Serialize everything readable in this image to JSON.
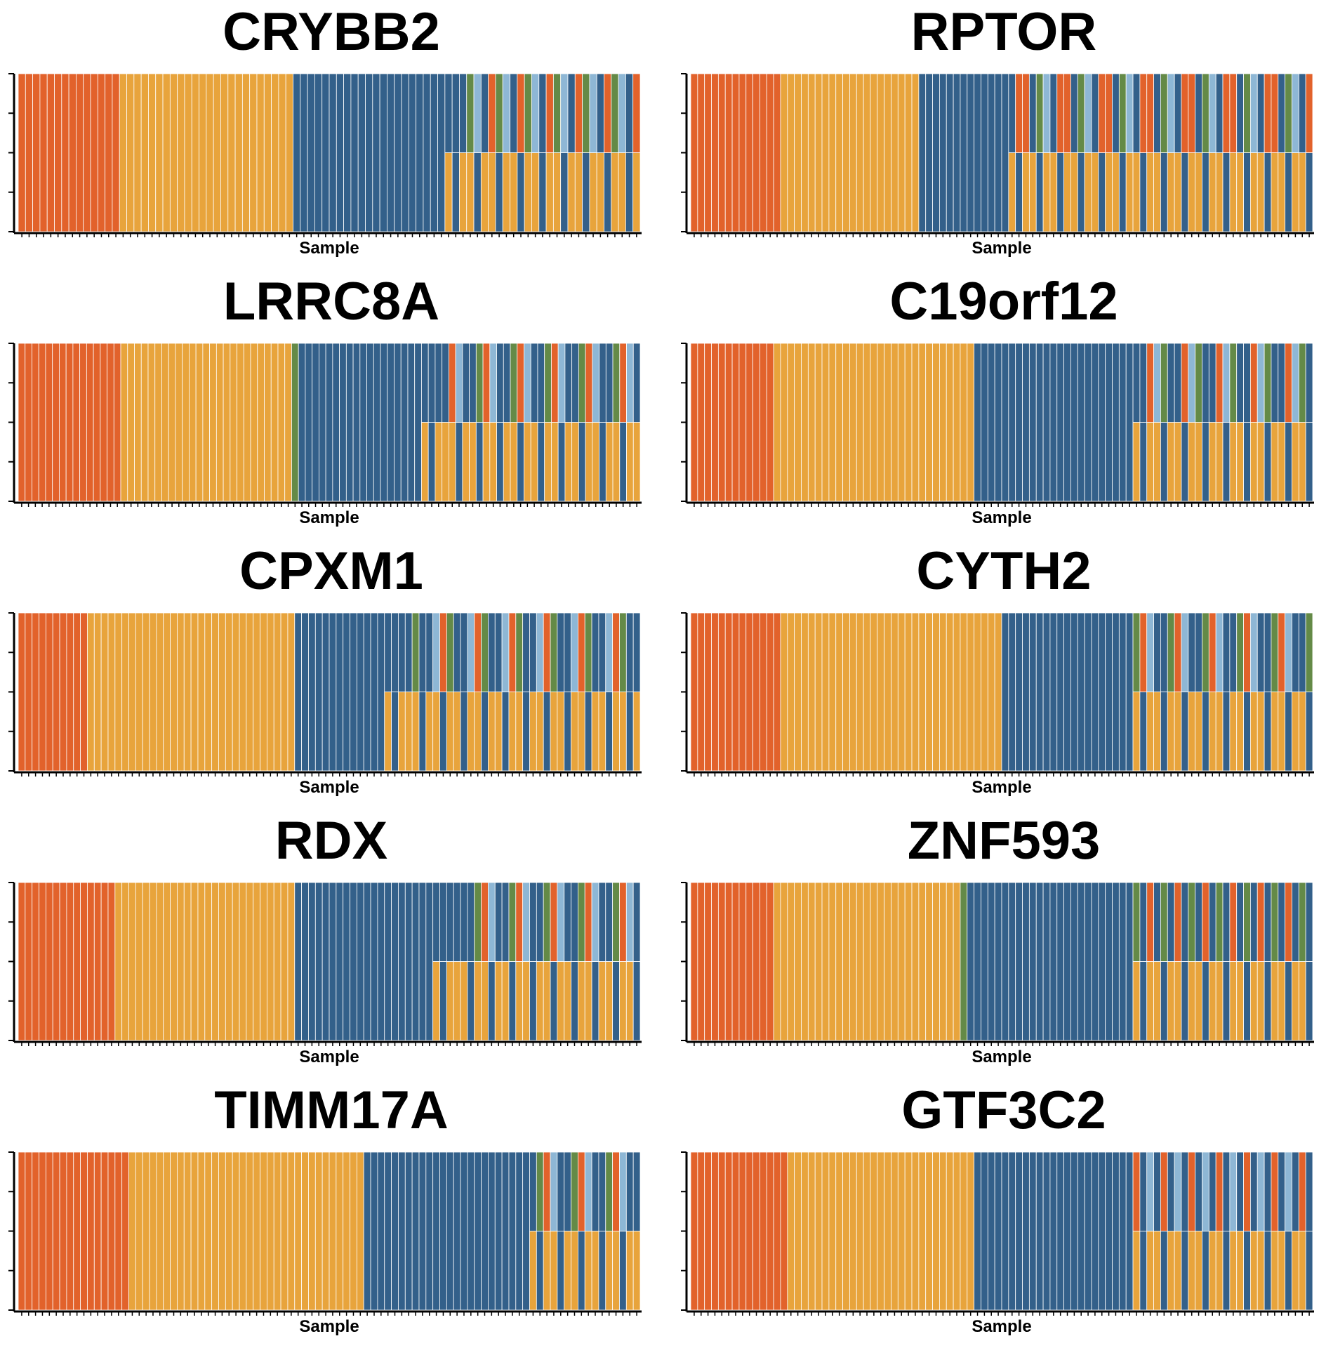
{
  "palette": {
    "orange-red": "#E2622B",
    "gold": "#E8A43C",
    "dark-blue": "#33608A",
    "light-blue": "#8EB7D5",
    "olive-green": "#648A47"
  },
  "chart_data": [
    {
      "type": "stacked-bar",
      "title": "CRYBB2",
      "xlabel": "Sample",
      "ylim": [
        0,
        1
      ],
      "segments": [
        {
          "n": 14,
          "stack": [
            "orange-red"
          ]
        },
        {
          "n": 24,
          "stack": [
            "gold"
          ]
        },
        {
          "n": 21,
          "stack": [
            "dark-blue"
          ]
        },
        {
          "n": 3,
          "stack": [
            "gold",
            "dark-blue"
          ]
        },
        {
          "n": 24,
          "stack": [
            "gold",
            "dark-blue"
          ],
          "mix": [
            "orange-red",
            "dark-blue",
            "light-blue",
            "olive-green"
          ]
        }
      ]
    },
    {
      "type": "stacked-bar",
      "title": "RPTOR",
      "xlabel": "Sample",
      "ylim": [
        0,
        1
      ],
      "segments": [
        {
          "n": 13,
          "stack": [
            "orange-red"
          ]
        },
        {
          "n": 20,
          "stack": [
            "gold"
          ]
        },
        {
          "n": 13,
          "stack": [
            "dark-blue"
          ]
        },
        {
          "n": 44,
          "stack": [
            "gold",
            "dark-blue"
          ],
          "mix": [
            "orange-red",
            "dark-blue",
            "olive-green",
            "light-blue",
            "dark-blue",
            "orange-red"
          ]
        }
      ]
    },
    {
      "type": "stacked-bar",
      "title": "LRRC8A",
      "xlabel": "Sample",
      "ylim": [
        0,
        1
      ],
      "segments": [
        {
          "n": 15,
          "stack": [
            "orange-red"
          ]
        },
        {
          "n": 25,
          "stack": [
            "gold"
          ]
        },
        {
          "n": 1,
          "stack": [
            "olive-green"
          ]
        },
        {
          "n": 18,
          "stack": [
            "dark-blue"
          ]
        },
        {
          "n": 4,
          "stack": [
            "gold",
            "dark-blue"
          ]
        },
        {
          "n": 28,
          "stack": [
            "gold",
            "dark-blue"
          ],
          "mix": [
            "orange-red",
            "dark-blue",
            "light-blue",
            "olive-green",
            "dark-blue"
          ]
        }
      ]
    },
    {
      "type": "stacked-bar",
      "title": "C19orf12",
      "xlabel": "Sample",
      "ylim": [
        0,
        1
      ],
      "segments": [
        {
          "n": 12,
          "stack": [
            "orange-red"
          ]
        },
        {
          "n": 29,
          "stack": [
            "gold"
          ]
        },
        {
          "n": 20,
          "stack": [
            "dark-blue"
          ]
        },
        {
          "n": 3,
          "stack": [
            "dark-blue"
          ]
        },
        {
          "n": 26,
          "stack": [
            "gold",
            "dark-blue"
          ],
          "mix": [
            "orange-red",
            "dark-blue",
            "light-blue",
            "dark-blue",
            "olive-green"
          ]
        }
      ]
    },
    {
      "type": "stacked-bar",
      "title": "CPXM1",
      "xlabel": "Sample",
      "ylim": [
        0,
        1
      ],
      "segments": [
        {
          "n": 10,
          "stack": [
            "orange-red"
          ]
        },
        {
          "n": 30,
          "stack": [
            "gold"
          ]
        },
        {
          "n": 13,
          "stack": [
            "dark-blue"
          ]
        },
        {
          "n": 4,
          "stack": [
            "gold",
            "dark-blue"
          ]
        },
        {
          "n": 33,
          "stack": [
            "gold",
            "dark-blue"
          ],
          "mix": [
            "orange-red",
            "dark-blue",
            "olive-green",
            "light-blue",
            "dark-blue"
          ]
        }
      ]
    },
    {
      "type": "stacked-bar",
      "title": "CYTH2",
      "xlabel": "Sample",
      "ylim": [
        0,
        1
      ],
      "segments": [
        {
          "n": 13,
          "stack": [
            "orange-red"
          ]
        },
        {
          "n": 32,
          "stack": [
            "gold"
          ]
        },
        {
          "n": 17,
          "stack": [
            "dark-blue"
          ]
        },
        {
          "n": 2,
          "stack": [
            "dark-blue"
          ]
        },
        {
          "n": 26,
          "stack": [
            "gold",
            "dark-blue"
          ],
          "mix": [
            "orange-red",
            "dark-blue",
            "light-blue",
            "olive-green",
            "dark-blue"
          ]
        }
      ]
    },
    {
      "type": "stacked-bar",
      "title": "RDX",
      "xlabel": "Sample",
      "ylim": [
        0,
        1
      ],
      "segments": [
        {
          "n": 14,
          "stack": [
            "orange-red"
          ]
        },
        {
          "n": 26,
          "stack": [
            "gold"
          ]
        },
        {
          "n": 20,
          "stack": [
            "dark-blue"
          ]
        },
        {
          "n": 4,
          "stack": [
            "gold",
            "dark-blue"
          ]
        },
        {
          "n": 26,
          "stack": [
            "gold",
            "dark-blue"
          ],
          "mix": [
            "orange-red",
            "dark-blue",
            "light-blue",
            "olive-green",
            "dark-blue"
          ]
        }
      ]
    },
    {
      "type": "stacked-bar",
      "title": "ZNF593",
      "xlabel": "Sample",
      "ylim": [
        0,
        1
      ],
      "segments": [
        {
          "n": 12,
          "stack": [
            "orange-red"
          ]
        },
        {
          "n": 27,
          "stack": [
            "gold"
          ]
        },
        {
          "n": 1,
          "stack": [
            "olive-green"
          ]
        },
        {
          "n": 24,
          "stack": [
            "dark-blue"
          ]
        },
        {
          "n": 26,
          "stack": [
            "gold",
            "dark-blue"
          ],
          "mix": [
            "orange-red",
            "dark-blue",
            "olive-green",
            "dark-blue"
          ]
        }
      ]
    },
    {
      "type": "stacked-bar",
      "title": "TIMM17A",
      "xlabel": "Sample",
      "ylim": [
        0,
        1
      ],
      "segments": [
        {
          "n": 16,
          "stack": [
            "orange-red"
          ]
        },
        {
          "n": 34,
          "stack": [
            "gold"
          ]
        },
        {
          "n": 24,
          "stack": [
            "dark-blue"
          ]
        },
        {
          "n": 16,
          "stack": [
            "gold",
            "dark-blue"
          ],
          "mix": [
            "orange-red",
            "dark-blue",
            "light-blue",
            "olive-green",
            "dark-blue"
          ]
        }
      ]
    },
    {
      "type": "stacked-bar",
      "title": "GTF3C2",
      "xlabel": "Sample",
      "ylim": [
        0,
        1
      ],
      "segments": [
        {
          "n": 14,
          "stack": [
            "orange-red"
          ]
        },
        {
          "n": 27,
          "stack": [
            "gold"
          ]
        },
        {
          "n": 23,
          "stack": [
            "dark-blue"
          ]
        },
        {
          "n": 26,
          "stack": [
            "gold",
            "dark-blue"
          ],
          "mix": [
            "orange-red",
            "dark-blue",
            "light-blue",
            "dark-blue"
          ]
        }
      ]
    }
  ]
}
